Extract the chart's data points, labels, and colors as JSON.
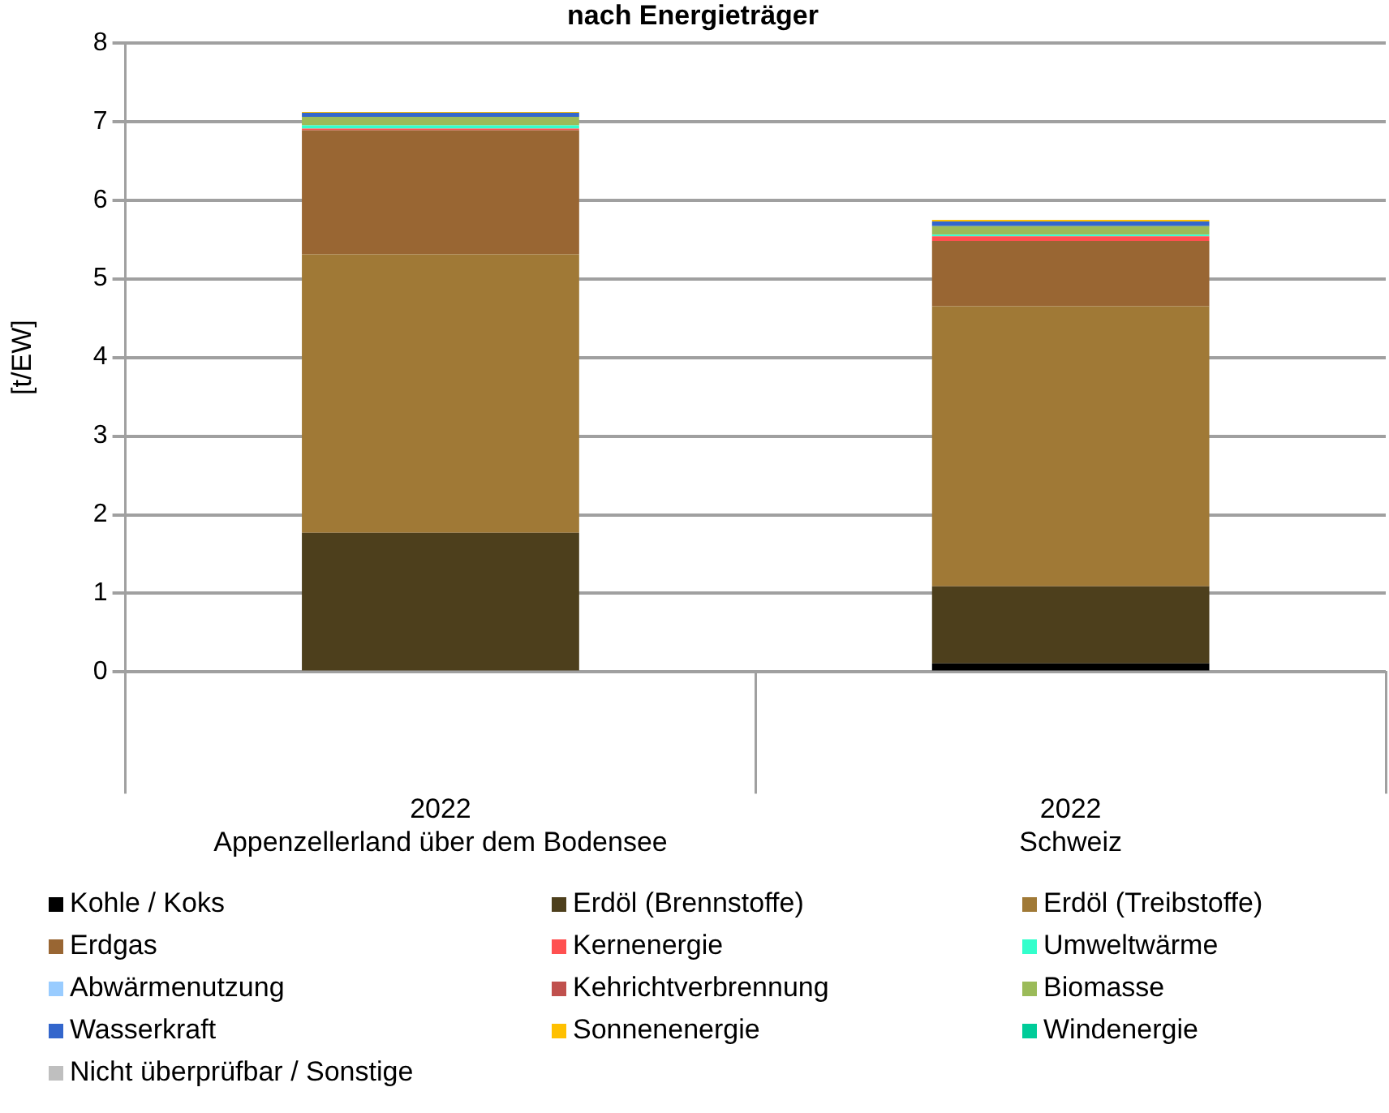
{
  "chart_data": {
    "type": "bar",
    "title": "nach Energieträger",
    "ylabel": "[t/EW]",
    "categories": [
      "2022\nAppenzellerland über dem Bodensee",
      "2022\nSchweiz"
    ],
    "stacked": true,
    "ylim": [
      0,
      8
    ],
    "yticks": [
      0,
      1,
      2,
      3,
      4,
      5,
      6,
      7,
      8
    ],
    "grid": "y",
    "legend": "bottom",
    "series": [
      {
        "name": "Kohle / Koks",
        "color": "#000000",
        "values": [
          0,
          0.11
        ]
      },
      {
        "name": "Erdöl (Brennstoffe)",
        "color": "#4d3f1c",
        "values": [
          1.77,
          0.98
        ]
      },
      {
        "name": "Erdöl (Treibstoffe)",
        "color": "#a07936",
        "values": [
          3.54,
          3.56
        ]
      },
      {
        "name": "Erdgas",
        "color": "#996633",
        "values": [
          1.58,
          0.83
        ]
      },
      {
        "name": "Kernenergie",
        "color": "#ff5050",
        "values": [
          0.02,
          0.06
        ]
      },
      {
        "name": "Umweltwärme",
        "color": "#33ffcc",
        "values": [
          0.04,
          0.02
        ]
      },
      {
        "name": "Abwärmenutzung",
        "color": "#99ccff",
        "values": [
          0,
          0
        ]
      },
      {
        "name": "Kehrichtverbrennung",
        "color": "#c0504d",
        "values": [
          0,
          0
        ]
      },
      {
        "name": "Biomasse",
        "color": "#9bbb59",
        "values": [
          0.11,
          0.11
        ]
      },
      {
        "name": "Wasserkraft",
        "color": "#3366cc",
        "values": [
          0.05,
          0.06
        ]
      },
      {
        "name": "Sonnenenergie",
        "color": "#ffc000",
        "values": [
          0.01,
          0.02
        ]
      },
      {
        "name": "Windenergie",
        "color": "#00cc99",
        "values": [
          0,
          0
        ]
      },
      {
        "name": "Nicht überprüfbar / Sonstige",
        "color": "#bfbfbf",
        "values": [
          0,
          0
        ]
      }
    ]
  }
}
